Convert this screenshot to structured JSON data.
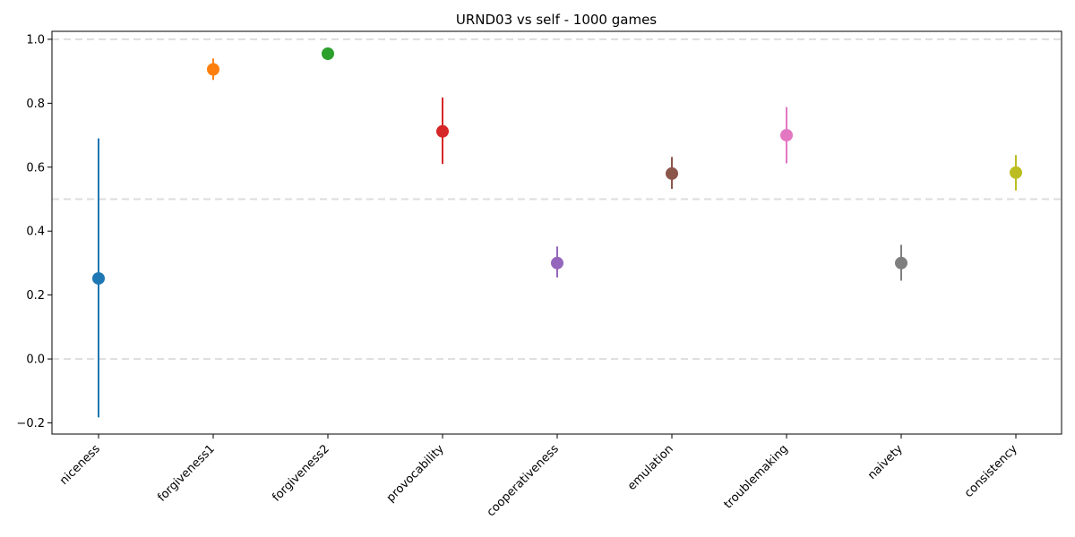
{
  "chart_data": {
    "type": "scatter",
    "title": "URND03 vs self - 1000 games",
    "xlabel": "",
    "ylabel": "",
    "categories": [
      "niceness",
      "forgiveness1",
      "forgiveness2",
      "provocability",
      "cooperativeness",
      "emulation",
      "troublemaking",
      "naivety",
      "consistency"
    ],
    "values": [
      0.252,
      0.906,
      0.955,
      0.712,
      0.3,
      0.58,
      0.7,
      0.3,
      0.583
    ],
    "err_low": [
      -0.183,
      0.873,
      0.952,
      0.61,
      0.255,
      0.532,
      0.612,
      0.245,
      0.527
    ],
    "err_high": [
      0.69,
      0.94,
      0.958,
      0.818,
      0.352,
      0.632,
      0.788,
      0.357,
      0.638
    ],
    "colors": [
      "#1f77b4",
      "#ff7f0e",
      "#2ca02c",
      "#d62728",
      "#9467bd",
      "#8c564b",
      "#e377c2",
      "#7f7f7f",
      "#bcbd22"
    ],
    "ylim": [
      -0.235,
      1.025
    ],
    "yticks": [
      -0.2,
      0.0,
      0.2,
      0.4,
      0.6,
      0.8,
      1.0
    ],
    "ytick_labels": [
      "−0.2",
      "0.0",
      "0.2",
      "0.4",
      "0.6",
      "0.8",
      "1.0"
    ],
    "reference_lines": [
      0.0,
      0.5,
      1.0
    ],
    "grid": false,
    "legend": "none"
  }
}
